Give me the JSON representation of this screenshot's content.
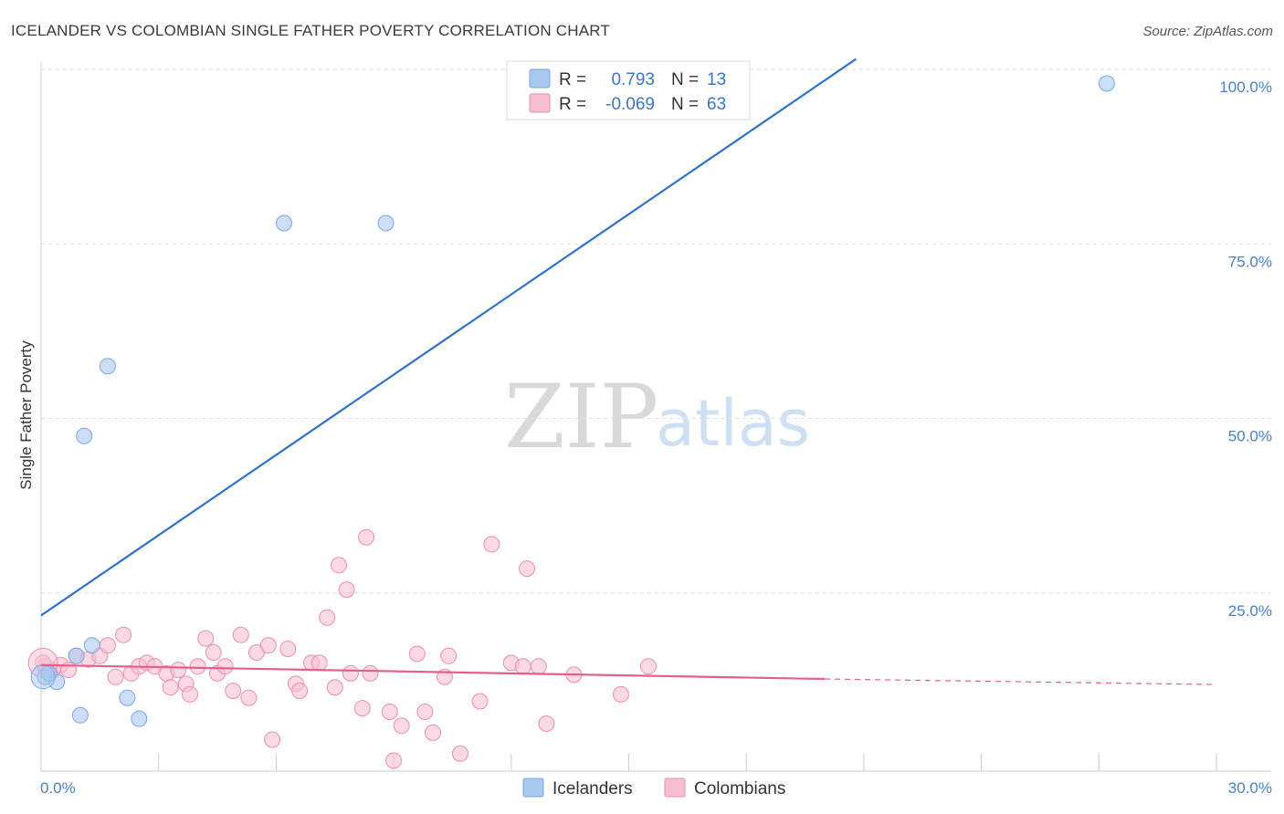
{
  "chart_data": {
    "type": "scatter",
    "title": "ICELANDER VS COLOMBIAN SINGLE FATHER POVERTY CORRELATION CHART",
    "source": "Source: ZipAtlas.com",
    "xlabel": "",
    "ylabel": "Single Father Poverty",
    "xlim": [
      0,
      30
    ],
    "ylim": [
      0,
      105
    ],
    "x_tick_labels": [
      "0.0%",
      "30.0%"
    ],
    "y_ticks": [
      25,
      50,
      75,
      100
    ],
    "y_tick_labels": [
      "25.0%",
      "50.0%",
      "75.0%",
      "100.0%"
    ],
    "watermark": {
      "zip": "ZIP",
      "atlas": "atlas"
    },
    "legend": {
      "rows": [
        {
          "r_label": "R =",
          "r_value": "0.793",
          "n_label": "N =",
          "n_value": "13"
        },
        {
          "r_label": "R =",
          "r_value": "-0.069",
          "n_label": "N =",
          "n_value": "63"
        }
      ]
    },
    "series": [
      {
        "name": "Icelanders",
        "color": "#a9c8f0",
        "stroke": "#7aa7e0",
        "line_color": "#2f73c9",
        "trend": {
          "x0": 0,
          "y0": 22.3,
          "x1": 20.8,
          "y1": 102
        },
        "points": [
          [
            0.1,
            13.5
          ],
          [
            0.4,
            12.8
          ],
          [
            1.0,
            8.0
          ],
          [
            0.9,
            16.5
          ],
          [
            1.3,
            18.0
          ],
          [
            1.1,
            48.0
          ],
          [
            1.7,
            58.0
          ],
          [
            2.2,
            10.5
          ],
          [
            2.5,
            7.5
          ],
          [
            6.2,
            78.5
          ],
          [
            8.8,
            78.5
          ],
          [
            27.2,
            98.5
          ],
          [
            0.2,
            14.0
          ]
        ]
      },
      {
        "name": "Colombians",
        "color": "#f6c0d2",
        "stroke": "#ea8fb0",
        "line_color": "#e0608e",
        "trend": {
          "x0": 0,
          "y0": 15.2,
          "x1": 20.0,
          "y1": 13.2,
          "dash_x1": 30,
          "dash_y1": 12.4
        },
        "points": [
          [
            0.1,
            15.0
          ],
          [
            0.3,
            14.5
          ],
          [
            0.5,
            15.2
          ],
          [
            0.7,
            14.5
          ],
          [
            0.9,
            16.5
          ],
          [
            1.2,
            16.0
          ],
          [
            1.5,
            16.5
          ],
          [
            1.7,
            18.0
          ],
          [
            1.9,
            13.5
          ],
          [
            2.1,
            19.5
          ],
          [
            2.3,
            14.0
          ],
          [
            2.5,
            15.0
          ],
          [
            2.7,
            15.5
          ],
          [
            2.9,
            15.0
          ],
          [
            3.2,
            14.0
          ],
          [
            3.3,
            12.0
          ],
          [
            3.5,
            14.5
          ],
          [
            3.7,
            12.5
          ],
          [
            3.8,
            11.0
          ],
          [
            4.0,
            15.0
          ],
          [
            4.2,
            19.0
          ],
          [
            4.4,
            17.0
          ],
          [
            4.5,
            14.0
          ],
          [
            4.7,
            15.0
          ],
          [
            4.9,
            11.5
          ],
          [
            5.1,
            19.5
          ],
          [
            5.3,
            10.5
          ],
          [
            5.5,
            17.0
          ],
          [
            5.8,
            18.0
          ],
          [
            5.9,
            4.5
          ],
          [
            6.3,
            17.5
          ],
          [
            6.5,
            12.5
          ],
          [
            6.6,
            11.5
          ],
          [
            6.9,
            15.5
          ],
          [
            7.1,
            15.5
          ],
          [
            7.3,
            22.0
          ],
          [
            7.5,
            12.0
          ],
          [
            7.6,
            29.5
          ],
          [
            7.8,
            26.0
          ],
          [
            7.9,
            14.0
          ],
          [
            8.2,
            9.0
          ],
          [
            8.3,
            33.5
          ],
          [
            8.4,
            14.0
          ],
          [
            8.9,
            8.5
          ],
          [
            9.0,
            1.5
          ],
          [
            9.2,
            6.5
          ],
          [
            9.6,
            16.8
          ],
          [
            9.8,
            8.5
          ],
          [
            10.0,
            5.5
          ],
          [
            10.3,
            13.5
          ],
          [
            10.4,
            16.5
          ],
          [
            10.7,
            2.5
          ],
          [
            11.2,
            10.0
          ],
          [
            11.5,
            32.5
          ],
          [
            12.0,
            15.5
          ],
          [
            12.3,
            15.0
          ],
          [
            12.4,
            29.0
          ],
          [
            12.7,
            15.0
          ],
          [
            12.9,
            6.8
          ],
          [
            13.6,
            13.8
          ],
          [
            14.8,
            11.0
          ],
          [
            15.5,
            15.0
          ],
          [
            0.05,
            15.5
          ]
        ]
      }
    ]
  }
}
